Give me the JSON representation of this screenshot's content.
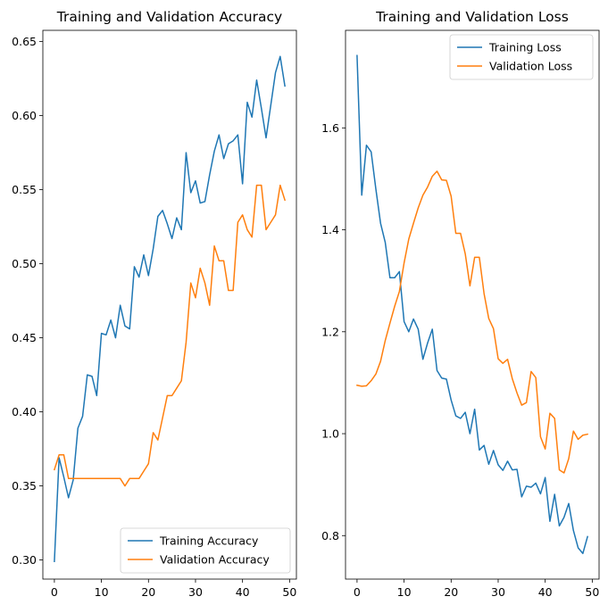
{
  "colors": {
    "training": "#1f77b4",
    "validation": "#ff7f0e"
  },
  "chart_data": [
    {
      "type": "line",
      "title": "Training and Validation Accuracy",
      "xlabel": "",
      "ylabel": "",
      "xlim": [
        -2.45,
        51.45
      ],
      "ylim": [
        0.2871,
        0.6576
      ],
      "xticks": [
        0,
        10,
        20,
        30,
        40,
        50
      ],
      "yticks": [
        0.3,
        0.35,
        0.4,
        0.45,
        0.5,
        0.55,
        0.6,
        0.65
      ],
      "ytick_labels": [
        "0.30",
        "0.35",
        "0.40",
        "0.45",
        "0.50",
        "0.55",
        "0.60",
        "0.65"
      ],
      "grid": false,
      "legend_position": "lower-right",
      "x": [
        0,
        1,
        2,
        3,
        4,
        5,
        6,
        7,
        8,
        9,
        10,
        11,
        12,
        13,
        14,
        15,
        16,
        17,
        18,
        19,
        20,
        21,
        22,
        23,
        24,
        25,
        26,
        27,
        28,
        29,
        30,
        31,
        32,
        33,
        34,
        35,
        36,
        37,
        38,
        39,
        40,
        41,
        42,
        43,
        44,
        45,
        46,
        47,
        48,
        49
      ],
      "series": [
        {
          "name": "Training Accuracy",
          "color_key": "training",
          "values": [
            0.299,
            0.369,
            0.356,
            0.342,
            0.354,
            0.389,
            0.397,
            0.425,
            0.424,
            0.411,
            0.453,
            0.452,
            0.462,
            0.45,
            0.472,
            0.458,
            0.456,
            0.498,
            0.491,
            0.506,
            0.492,
            0.51,
            0.532,
            0.536,
            0.527,
            0.517,
            0.531,
            0.523,
            0.575,
            0.548,
            0.556,
            0.541,
            0.542,
            0.56,
            0.576,
            0.587,
            0.571,
            0.581,
            0.583,
            0.587,
            0.554,
            0.609,
            0.599,
            0.624,
            0.605,
            0.585,
            0.607,
            0.629,
            0.64,
            0.62
          ]
        },
        {
          "name": "Validation Accuracy",
          "color_key": "validation",
          "values": [
            0.361,
            0.371,
            0.371,
            0.355,
            0.355,
            0.355,
            0.355,
            0.355,
            0.355,
            0.355,
            0.355,
            0.355,
            0.355,
            0.355,
            0.355,
            0.35,
            0.355,
            0.355,
            0.355,
            0.36,
            0.365,
            0.386,
            0.381,
            0.396,
            0.411,
            0.411,
            0.416,
            0.421,
            0.447,
            0.487,
            0.477,
            0.497,
            0.487,
            0.472,
            0.512,
            0.502,
            0.502,
            0.482,
            0.482,
            0.528,
            0.533,
            0.523,
            0.518,
            0.553,
            0.553,
            0.523,
            0.528,
            0.533,
            0.553,
            0.543
          ]
        }
      ]
    },
    {
      "type": "line",
      "title": "Training and Validation Loss",
      "xlabel": "",
      "ylabel": "",
      "xlim": [
        -2.45,
        51.45
      ],
      "ylim": [
        0.7147,
        1.7914
      ],
      "xticks": [
        0,
        10,
        20,
        30,
        40,
        50
      ],
      "yticks": [
        0.8,
        1.0,
        1.2,
        1.4,
        1.6
      ],
      "ytick_labels": [
        "0.8",
        "1.0",
        "1.2",
        "1.4",
        "1.6"
      ],
      "grid": false,
      "legend_position": "upper-right",
      "x": [
        0,
        1,
        2,
        3,
        4,
        5,
        6,
        7,
        8,
        9,
        10,
        11,
        12,
        13,
        14,
        15,
        16,
        17,
        18,
        19,
        20,
        21,
        22,
        23,
        24,
        25,
        26,
        27,
        28,
        29,
        30,
        31,
        32,
        33,
        34,
        35,
        36,
        37,
        38,
        39,
        40,
        41,
        42,
        43,
        44,
        45,
        46,
        47,
        48,
        49
      ],
      "series": [
        {
          "name": "Training Loss",
          "color_key": "training",
          "values": [
            1.742,
            1.468,
            1.566,
            1.553,
            1.48,
            1.413,
            1.375,
            1.306,
            1.306,
            1.318,
            1.22,
            1.2,
            1.225,
            1.205,
            1.146,
            1.178,
            1.205,
            1.124,
            1.109,
            1.107,
            1.066,
            1.035,
            1.03,
            1.042,
            1.0,
            1.048,
            0.968,
            0.977,
            0.94,
            0.967,
            0.939,
            0.928,
            0.946,
            0.929,
            0.93,
            0.876,
            0.897,
            0.895,
            0.903,
            0.882,
            0.914,
            0.828,
            0.881,
            0.819,
            0.836,
            0.863,
            0.81,
            0.776,
            0.765,
            0.798
          ]
        },
        {
          "name": "Validation Loss",
          "color_key": "validation",
          "values": [
            1.095,
            1.093,
            1.094,
            1.104,
            1.117,
            1.142,
            1.183,
            1.217,
            1.25,
            1.279,
            1.335,
            1.382,
            1.413,
            1.443,
            1.468,
            1.484,
            1.505,
            1.515,
            1.498,
            1.497,
            1.466,
            1.393,
            1.393,
            1.353,
            1.29,
            1.346,
            1.346,
            1.275,
            1.226,
            1.206,
            1.147,
            1.138,
            1.146,
            1.108,
            1.08,
            1.056,
            1.061,
            1.122,
            1.11,
            0.994,
            0.97,
            1.04,
            1.03,
            0.929,
            0.923,
            0.951,
            1.005,
            0.989,
            0.997,
            0.999
          ]
        }
      ]
    }
  ]
}
